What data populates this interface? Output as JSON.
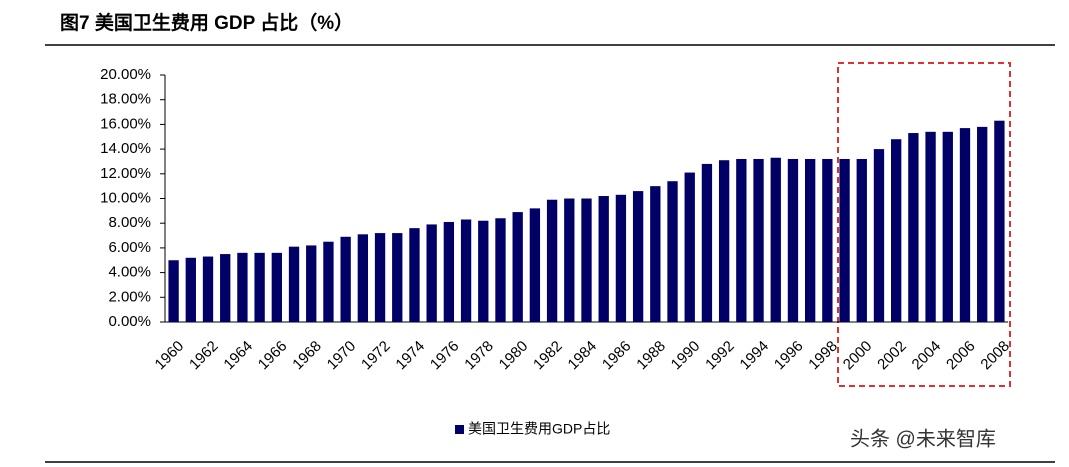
{
  "chart_data": {
    "type": "bar",
    "title": "图7  美国卫生费用 GDP 占比（%）",
    "categories": [
      "1960",
      null,
      "1962",
      null,
      "1964",
      null,
      "1966",
      null,
      "1968",
      null,
      "1970",
      null,
      "1972",
      null,
      "1974",
      null,
      "1976",
      null,
      "1978",
      null,
      "1980",
      null,
      "1982",
      null,
      "1984",
      null,
      "1986",
      null,
      "1988",
      null,
      "1990",
      null,
      "1992",
      null,
      "1994",
      null,
      "1996",
      null,
      "1998",
      null,
      "2000",
      null,
      "2002",
      null,
      "2004",
      null,
      "2006",
      null,
      "2008"
    ],
    "series": [
      {
        "name": "美国卫生费用GDP占比",
        "color": "#000066",
        "values": [
          5.0,
          5.2,
          5.3,
          5.5,
          5.6,
          5.6,
          5.6,
          6.1,
          6.2,
          6.5,
          6.9,
          7.1,
          7.2,
          7.2,
          7.6,
          7.9,
          8.1,
          8.3,
          8.2,
          8.4,
          8.9,
          9.2,
          9.9,
          10.0,
          10.0,
          10.2,
          10.3,
          10.6,
          11.0,
          11.4,
          12.1,
          12.8,
          13.1,
          13.2,
          13.2,
          13.3,
          13.2,
          13.2,
          13.2,
          13.2,
          13.2,
          14.0,
          14.8,
          15.3,
          15.4,
          15.4,
          15.7,
          15.8,
          16.3
        ]
      }
    ],
    "ylim": [
      0,
      20
    ],
    "yticks": [
      {
        "value": 0,
        "label": "0.00%"
      },
      {
        "value": 2,
        "label": "2.00%"
      },
      {
        "value": 4,
        "label": "4.00%"
      },
      {
        "value": 6,
        "label": "6.00%"
      },
      {
        "value": 8,
        "label": "8.00%"
      },
      {
        "value": 10,
        "label": "10.00%"
      },
      {
        "value": 12,
        "label": "12.00%"
      },
      {
        "value": 14,
        "label": "14.00%"
      },
      {
        "value": 16,
        "label": "16.00%"
      },
      {
        "value": 18,
        "label": "18.00%"
      },
      {
        "value": 20,
        "label": "20.00%"
      }
    ],
    "grid": false,
    "legend": "bottom",
    "watermark": "头条 @未来智库"
  }
}
